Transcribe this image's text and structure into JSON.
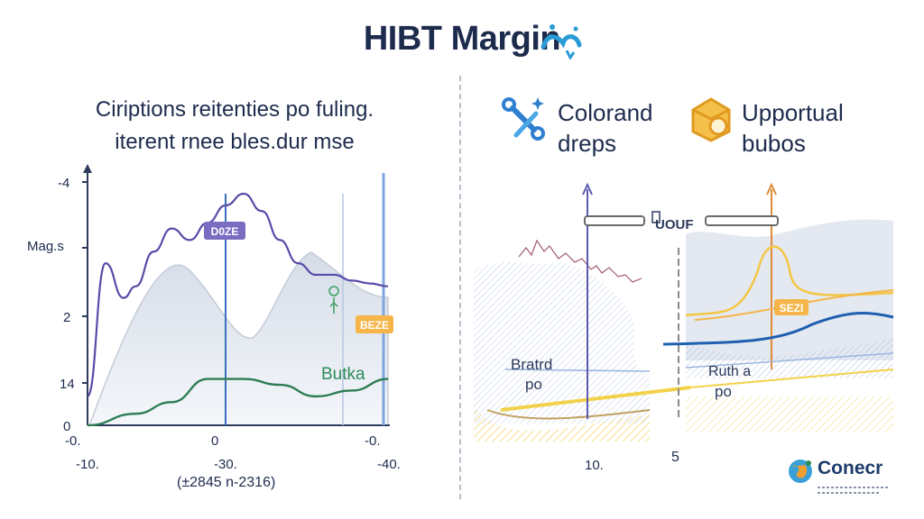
{
  "header": {
    "title": "HIBT Margin"
  },
  "left_panel": {
    "subtitle_line1": "Ciriptions reitenties po fuling.",
    "subtitle_line2": "iterent rnee bles.dur mse",
    "y_axis_label": "Mag.s",
    "y_ticks": [
      "-4",
      "2",
      "14",
      "0"
    ],
    "x_ticks_top": [
      "-0.",
      "0",
      "-0."
    ],
    "x_ticks_bottom": [
      "-10.",
      "-30.",
      "-40."
    ],
    "x_range_label": "(±2845 n-2316)",
    "tag_top": "D0ZE",
    "tag_right": "BEZE",
    "series_label": "Butka"
  },
  "right_panel": {
    "feature1": {
      "line1": "Colorand",
      "line2": "dreps",
      "icon": "tools-icon"
    },
    "feature2": {
      "line1": "Upportual",
      "line2": "bubos",
      "icon": "package-icon"
    },
    "mid_label": "UOUF",
    "tag": "SEZI",
    "left_chart_label1": "Bratrd",
    "left_chart_label2": "po",
    "right_chart_label1": "Ruth a",
    "right_chart_label2": "po",
    "x_tick_left": "10.",
    "x_tick_mid": "5"
  },
  "logo": {
    "text": "Conecr",
    "icon": "globe-icon"
  },
  "colors": {
    "purple": "#5a4aa8",
    "green": "#2e7d55",
    "blue": "#1f5fb0",
    "orange": "#f0a030",
    "yellow": "#f2c744",
    "axis": "#2c3a5c",
    "area": "#dfe5ee"
  },
  "chart_data": [
    {
      "type": "line",
      "title": "",
      "xlabel": "",
      "ylabel": "Mag.s",
      "ylim": [
        0,
        4
      ],
      "series": [
        {
          "name": "",
          "x": [
            0,
            3,
            6,
            8,
            11,
            14,
            17,
            20,
            23,
            26,
            29,
            32,
            35,
            38,
            41,
            44,
            47,
            50
          ],
          "y": [
            0.5,
            2.8,
            2.2,
            2.4,
            3.0,
            3.4,
            3.2,
            3.5,
            3.8,
            4.0,
            3.7,
            3.2,
            2.8,
            2.6,
            2.6,
            2.5,
            2.45,
            2.4
          ]
        },
        {
          "name": "Butka",
          "x": [
            0,
            8,
            14,
            20,
            26,
            32,
            38,
            44,
            50
          ],
          "y": [
            0.0,
            0.2,
            0.4,
            0.8,
            0.8,
            0.7,
            0.5,
            0.6,
            0.8
          ]
        }
      ]
    }
  ]
}
